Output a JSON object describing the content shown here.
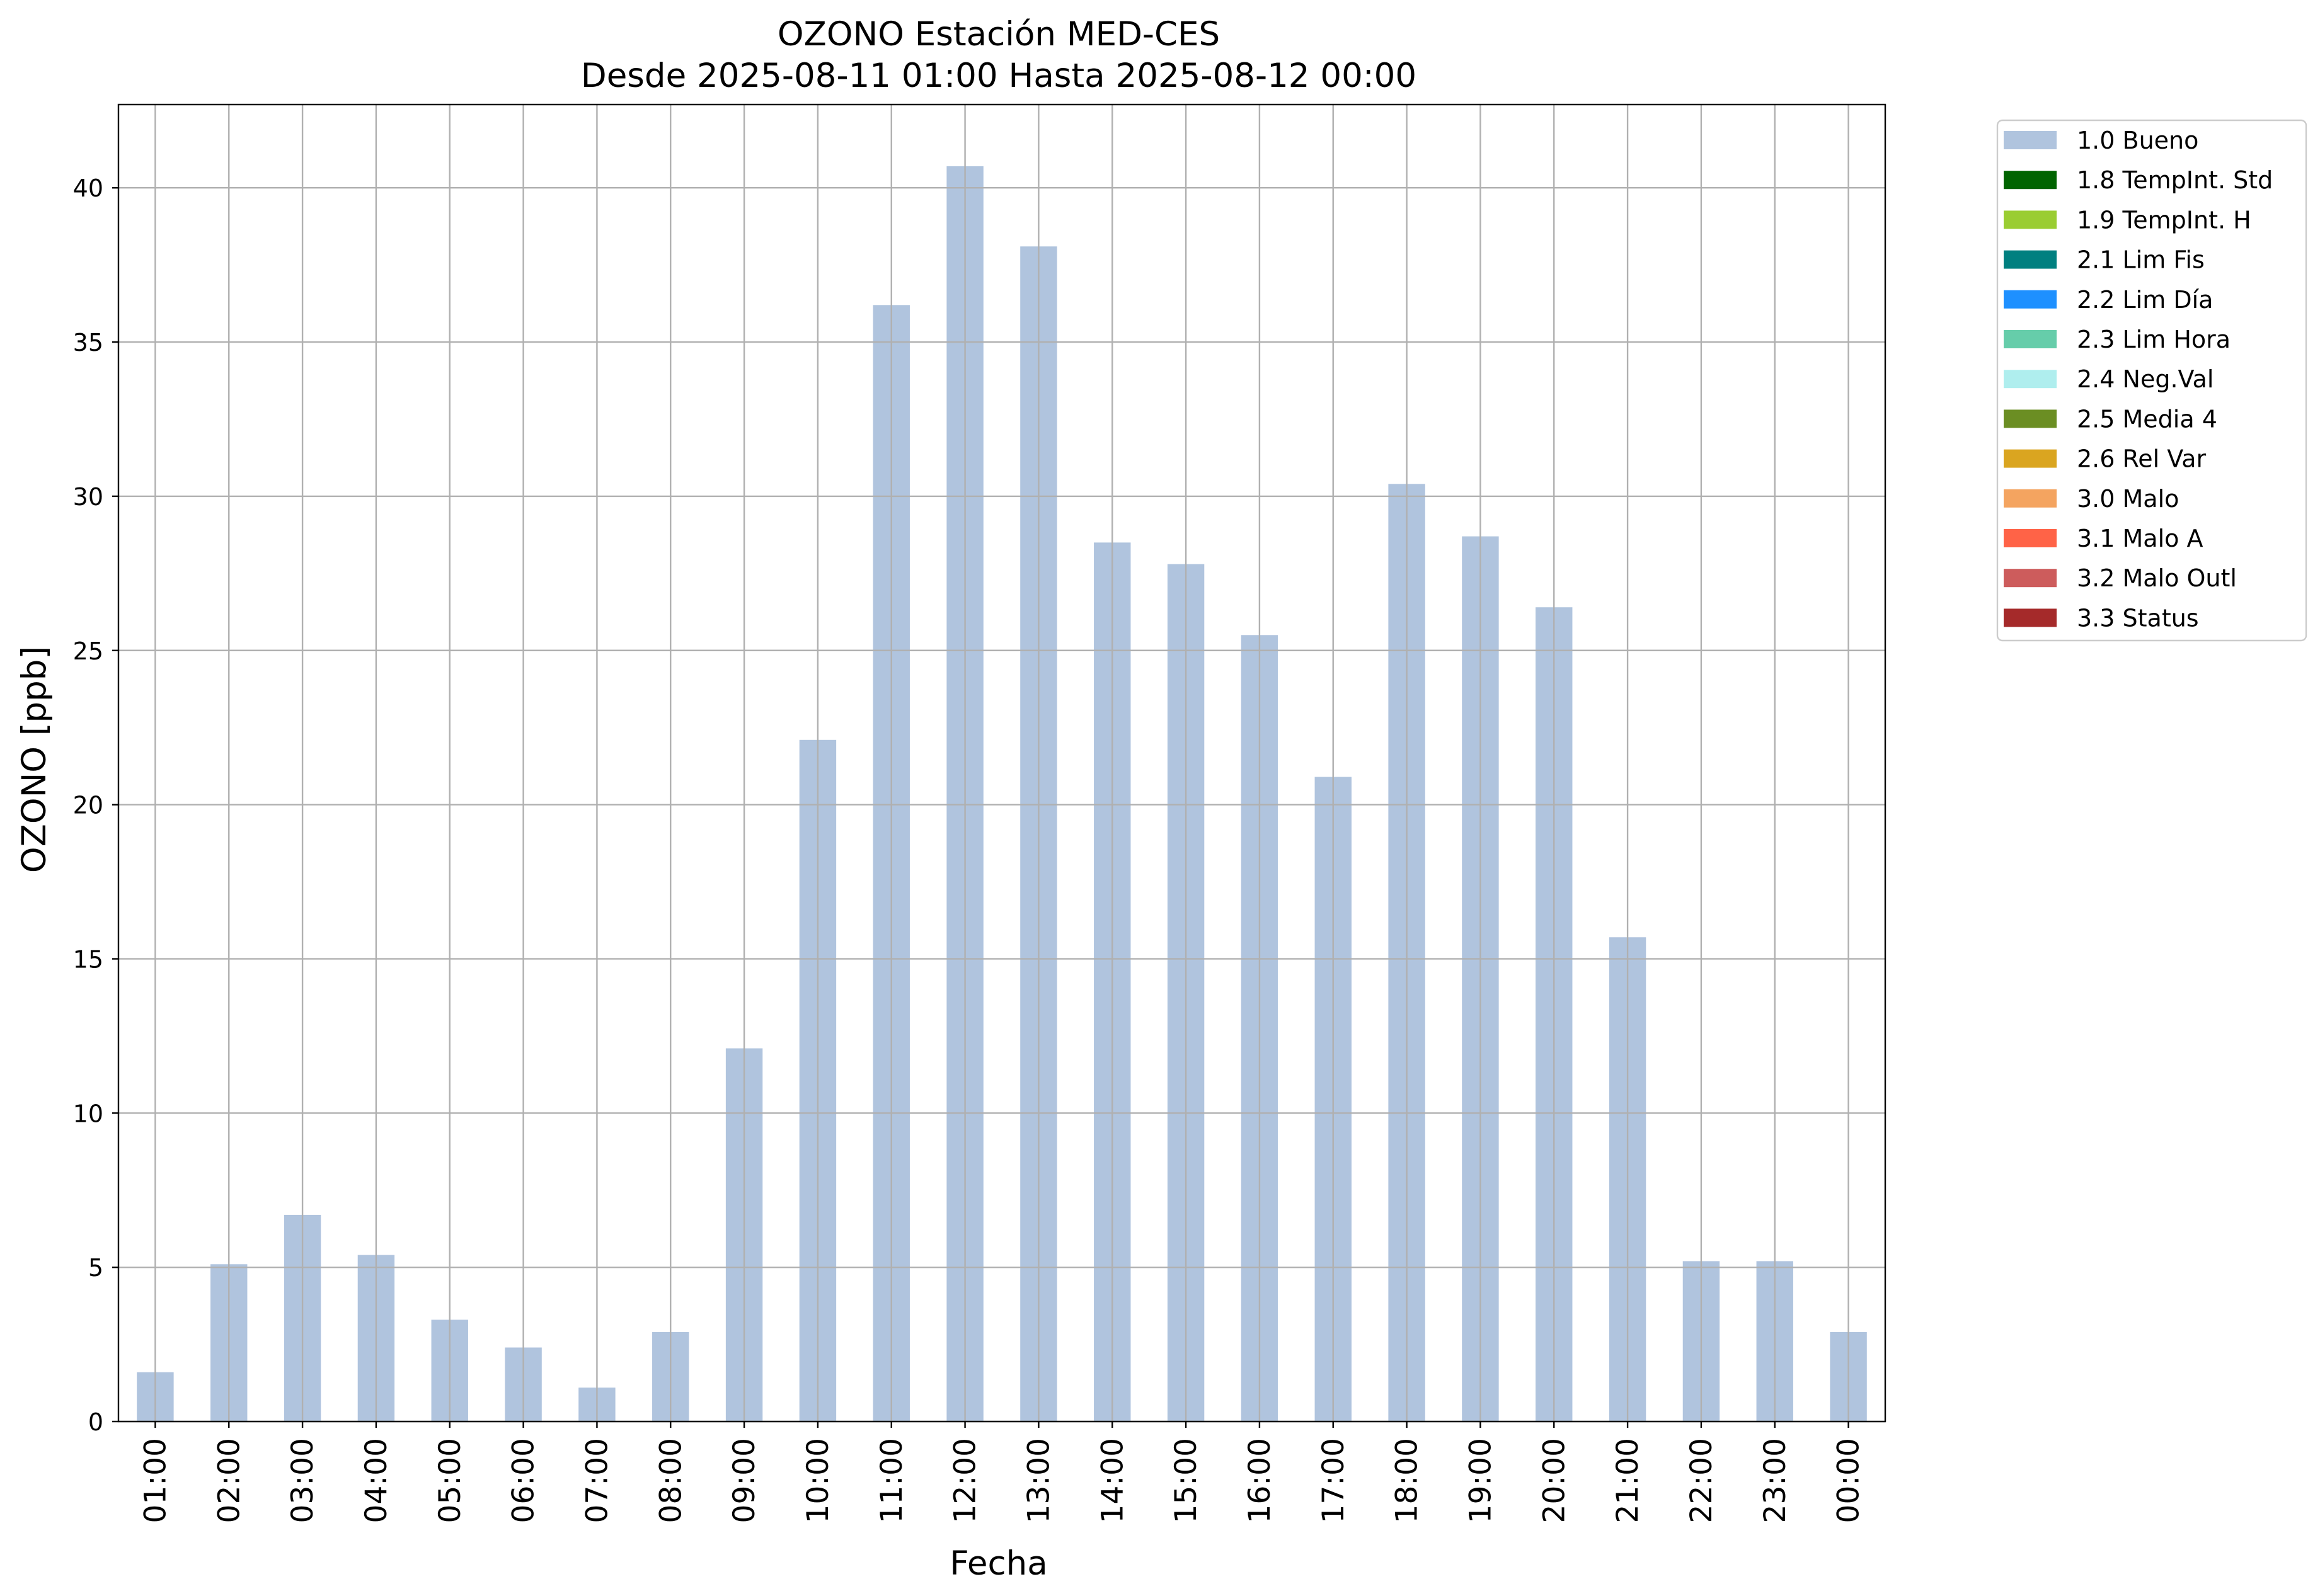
{
  "chart_data": {
    "type": "bar",
    "title": "OZONO Estación MED-CES",
    "subtitle": "Desde 2025-08-11 01:00 Hasta 2025-08-12 00:00",
    "xlabel": "Fecha",
    "ylabel": "OZONO [ppb]",
    "ylim": [
      0,
      42.7
    ],
    "yticks": [
      0,
      5,
      10,
      15,
      20,
      25,
      30,
      35,
      40
    ],
    "grid": true,
    "legend_position": "outside top-right",
    "categories": [
      "01:00",
      "02:00",
      "03:00",
      "04:00",
      "05:00",
      "06:00",
      "07:00",
      "08:00",
      "09:00",
      "10:00",
      "11:00",
      "12:00",
      "13:00",
      "14:00",
      "15:00",
      "16:00",
      "17:00",
      "18:00",
      "19:00",
      "20:00",
      "21:00",
      "22:00",
      "23:00",
      "00:00"
    ],
    "series": [
      {
        "name": "1.0 Bueno",
        "color": "#b0c4de",
        "values": [
          1.6,
          5.1,
          6.7,
          5.4,
          3.3,
          2.4,
          1.1,
          2.9,
          12.1,
          22.1,
          36.2,
          40.7,
          38.1,
          28.5,
          27.8,
          25.5,
          20.9,
          30.4,
          28.7,
          26.4,
          15.7,
          5.2,
          5.2,
          2.9
        ]
      }
    ],
    "legend": [
      {
        "label": "1.0 Bueno",
        "color": "#b0c4de"
      },
      {
        "label": "1.8 TempInt. Std",
        "color": "#006400"
      },
      {
        "label": "1.9 TempInt. H",
        "color": "#9acd32"
      },
      {
        "label": "2.1 Lim Fis",
        "color": "#008080"
      },
      {
        "label": "2.2 Lim Día",
        "color": "#1e90ff"
      },
      {
        "label": "2.3 Lim Hora",
        "color": "#66cdaa"
      },
      {
        "label": "2.4 Neg.Val",
        "color": "#afeeee"
      },
      {
        "label": "2.5 Media 4",
        "color": "#6b8e23"
      },
      {
        "label": "2.6 Rel Var",
        "color": "#daa520"
      },
      {
        "label": "3.0 Malo",
        "color": "#f4a460"
      },
      {
        "label": "3.1 Malo A",
        "color": "#ff6347"
      },
      {
        "label": "3.2 Malo Outl",
        "color": "#cd5c5c"
      },
      {
        "label": "3.3 Status",
        "color": "#a52a2a"
      }
    ]
  }
}
